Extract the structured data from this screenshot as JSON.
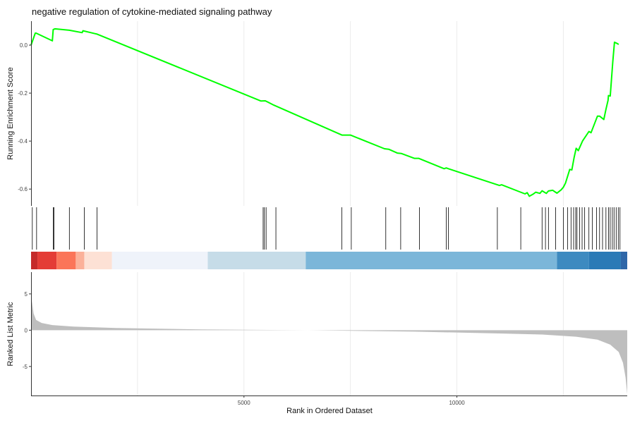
{
  "chart_data": {
    "type": "line",
    "title": "negative regulation of cytokine-mediated signaling pathway",
    "xlabel": "Rank in Ordered Dataset",
    "xlim": [
      0,
      14000
    ],
    "x_ticks": [
      5000,
      10000
    ],
    "x_tick_labels": [
      "5000",
      "10000"
    ],
    "grid": true,
    "panels": {
      "enrichment": {
        "ylabel": "Running Enrichment Score",
        "ylim": [
          -0.67,
          0.1
        ],
        "y_ticks": [
          0.0,
          -0.2,
          -0.4,
          -0.6
        ],
        "y_tick_labels": [
          "0.0",
          "-0.2",
          "-0.4",
          "-0.6"
        ],
        "line_color": "#00ff00",
        "x": [
          0,
          100,
          120,
          500,
          520,
          560,
          900,
          1200,
          1220,
          1500,
          1550,
          5400,
          5500,
          5700,
          7300,
          7500,
          8300,
          8400,
          8600,
          8700,
          9000,
          9100,
          9700,
          9750,
          9800,
          11000,
          11050,
          11600,
          11650,
          11700,
          11800,
          11850,
          11950,
          12000,
          12100,
          12150,
          12250,
          12350,
          12450,
          12500,
          12550,
          12650,
          12700,
          12750,
          12800,
          12850,
          12950,
          13100,
          13150,
          13300,
          13350,
          13450,
          13500,
          13550,
          13560,
          13600,
          13660,
          13700,
          13750,
          13800
        ],
        "y": [
          0.0,
          0.05,
          0.05,
          0.018,
          0.065,
          0.068,
          0.062,
          0.052,
          0.06,
          0.048,
          0.046,
          -0.233,
          -0.232,
          -0.25,
          -0.375,
          -0.375,
          -0.432,
          -0.434,
          -0.45,
          -0.452,
          -0.472,
          -0.472,
          -0.515,
          -0.512,
          -0.515,
          -0.585,
          -0.582,
          -0.62,
          -0.615,
          -0.63,
          -0.62,
          -0.613,
          -0.618,
          -0.607,
          -0.618,
          -0.608,
          -0.605,
          -0.617,
          -0.603,
          -0.592,
          -0.575,
          -0.518,
          -0.52,
          -0.47,
          -0.43,
          -0.44,
          -0.4,
          -0.36,
          -0.365,
          -0.296,
          -0.296,
          -0.31,
          -0.268,
          -0.23,
          -0.21,
          -0.212,
          -0.07,
          0.012,
          0.008,
          0.003
        ]
      },
      "hits": {
        "positions": [
          30,
          130,
          520,
          540,
          900,
          1250,
          1550,
          5450,
          5480,
          5520,
          5750,
          7300,
          7520,
          8330,
          8680,
          9120,
          9750,
          9800,
          10950,
          11500,
          12000,
          12080,
          12150,
          12320,
          12500,
          12600,
          12680,
          12740,
          12790,
          12820,
          12880,
          12940,
          13000,
          13100,
          13180,
          13280,
          13350,
          13420,
          13500,
          13560,
          13600,
          13650,
          13690,
          13740,
          13790,
          13830
        ]
      },
      "color_band": {
        "segments": [
          {
            "from": 0,
            "to": 150,
            "color": "#c52a2a"
          },
          {
            "from": 150,
            "to": 600,
            "color": "#e43c36"
          },
          {
            "from": 600,
            "to": 1050,
            "color": "#fb7559"
          },
          {
            "from": 1050,
            "to": 1250,
            "color": "#fbb19a"
          },
          {
            "from": 1250,
            "to": 1900,
            "color": "#fde1d5"
          },
          {
            "from": 1900,
            "to": 4150,
            "color": "#eff3fa"
          },
          {
            "from": 4150,
            "to": 6450,
            "color": "#c6dce8"
          },
          {
            "from": 6450,
            "to": 12350,
            "color": "#7bb6d9"
          },
          {
            "from": 12350,
            "to": 13100,
            "color": "#3d8ac0"
          },
          {
            "from": 13100,
            "to": 13850,
            "color": "#2a7ab6"
          },
          {
            "from": 13850,
            "to": 14000,
            "color": "#2f67a8"
          }
        ]
      },
      "ranked_metric": {
        "ylabel": "Ranked List Metric",
        "ylim": [
          -9,
          8
        ],
        "y_ticks": [
          5,
          0,
          -5
        ],
        "y_tick_labels": [
          "5",
          "0",
          "-5"
        ],
        "fill_color": "#bebebe",
        "x": [
          0,
          20,
          60,
          120,
          250,
          500,
          1000,
          2000,
          4000,
          6500,
          9000,
          11000,
          12000,
          12800,
          13300,
          13600,
          13800,
          13900,
          13960,
          14000
        ],
        "y": [
          8.5,
          4.0,
          2.3,
          1.4,
          1.0,
          0.7,
          0.5,
          0.3,
          0.1,
          0.0,
          -0.2,
          -0.45,
          -0.6,
          -0.9,
          -1.3,
          -2.0,
          -3.0,
          -4.5,
          -6.5,
          -8.8
        ]
      }
    }
  }
}
